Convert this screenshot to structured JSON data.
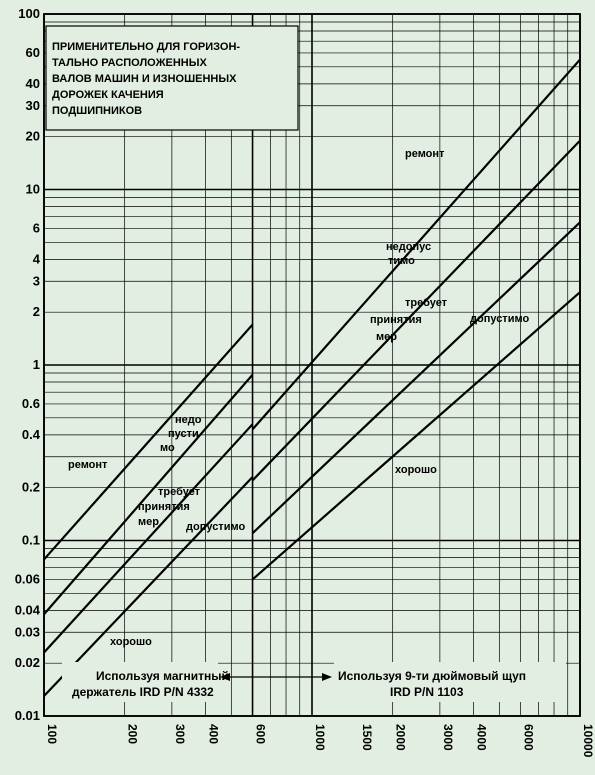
{
  "chart_data": {
    "type": "line",
    "title_lines": [
      "ПРИМЕНИТЕЛЬНО ДЛЯ ГОРИЗОН-",
      "ТАЛЬНО РАСПОЛОЖЕННЫХ",
      "ВАЛОВ МАШИН И ИЗНОШЕННЫХ",
      "ДОРОЖЕК КАЧЕНИЯ",
      "ПОДШИПНИКОВ"
    ],
    "x_scale": "log",
    "y_scale": "log",
    "xlim": [
      100,
      10000
    ],
    "ylim": [
      0.01,
      100
    ],
    "x_ticks": [
      100,
      200,
      300,
      400,
      600,
      1000,
      1500,
      2000,
      3000,
      4000,
      6000,
      10000
    ],
    "x_tick_labels": [
      "100",
      "200",
      "300",
      "400",
      "600",
      "1000",
      "1500",
      "2000",
      "3000",
      "4000",
      "6000",
      "10000"
    ],
    "y_ticks": [
      0.01,
      0.02,
      0.03,
      0.04,
      0.06,
      0.1,
      0.2,
      0.4,
      0.6,
      1,
      2,
      3,
      4,
      6,
      10,
      20,
      30,
      40,
      60,
      100
    ],
    "y_tick_labels": [
      "0.01",
      "0.02",
      "0.03",
      "0.04",
      "0.06",
      "0.1",
      "0.2",
      "0.4",
      "0.6",
      "1",
      "2",
      "3",
      "4",
      "6",
      "10",
      "20",
      "30",
      "40",
      "60",
      "100"
    ],
    "regions": [
      {
        "name": "Используя магнитный держатель IRD P/N 4332",
        "x_range": [
          100,
          600
        ],
        "lines": [
          {
            "x": [
              100,
              600
            ],
            "y": [
              0.078,
              1.7
            ]
          },
          {
            "x": [
              100,
              600
            ],
            "y": [
              0.038,
              0.88
            ]
          },
          {
            "x": [
              100,
              600
            ],
            "y": [
              0.023,
              0.46
            ]
          },
          {
            "x": [
              100,
              600
            ],
            "y": [
              0.013,
              0.23
            ]
          }
        ],
        "zones": [
          {
            "label_lines": [
              "ремонт"
            ]
          },
          {
            "label_lines": [
              "недо",
              "пусти",
              "мо"
            ]
          },
          {
            "label_lines": [
              "требует",
              "принятия",
              "мер"
            ]
          },
          {
            "label_lines": [
              "допустимо"
            ]
          },
          {
            "label_lines": [
              "хорошо"
            ]
          }
        ]
      },
      {
        "name": "Используя 9-ти дюймовый щуп IRD P/N 1103",
        "x_range": [
          600,
          10000
        ],
        "lines": [
          {
            "x": [
              600,
              10000
            ],
            "y": [
              0.43,
              55
            ]
          },
          {
            "x": [
              600,
              10000
            ],
            "y": [
              0.22,
              19
            ]
          },
          {
            "x": [
              600,
              10000
            ],
            "y": [
              0.11,
              6.5
            ]
          },
          {
            "x": [
              600,
              10000
            ],
            "y": [
              0.06,
              2.6
            ]
          }
        ],
        "zones": [
          {
            "label_lines": [
              "ремонт"
            ]
          },
          {
            "label_lines": [
              "недопус",
              "тимо"
            ]
          },
          {
            "label_lines": [
              "требует",
              "принятия",
              "мер"
            ]
          },
          {
            "label_lines": [
              "допустимо"
            ]
          },
          {
            "label_lines": [
              "хорошо"
            ]
          }
        ]
      }
    ],
    "region_divider_x": 600,
    "grid": true,
    "colors": {
      "background": "#e2eee2",
      "ink": "#000000"
    }
  },
  "legend_left": [
    "Используя магнитный",
    "держатель IRD P/N 4332"
  ],
  "legend_right": [
    "Используя 9-ти дюймовый щуп",
    "IRD P/N 1103"
  ]
}
